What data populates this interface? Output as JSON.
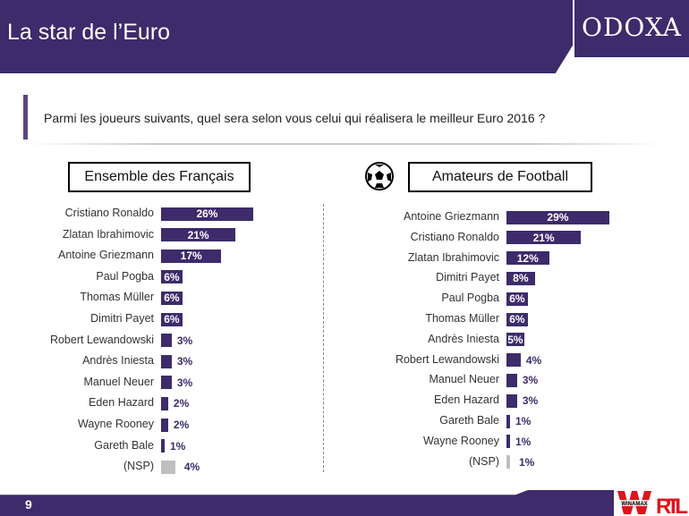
{
  "header": {
    "title": "La star de l’Euro",
    "logo": "ODOXA"
  },
  "question": "Parmi les joueurs suivants, quel sera selon vous celui qui réalisera le meilleur Euro 2016 ?",
  "footer": {
    "page": "9",
    "partner_logos": [
      "WINAMAX",
      "RTL"
    ]
  },
  "colors": {
    "bar": "#3d2b6b",
    "nsp": "#bfbfbf",
    "header": "#3d2b6b"
  },
  "chart_data": [
    {
      "type": "bar",
      "orientation": "horizontal",
      "title": "Ensemble des Français",
      "categories": [
        "Cristiano Ronaldo",
        "Zlatan Ibrahimovic",
        "Antoine Griezmann",
        "Paul Pogba",
        "Thomas Müller",
        "Dimitri Payet",
        "Robert Lewandowski",
        "Andrès Iniesta",
        "Manuel Neuer",
        "Eden Hazard",
        "Wayne Rooney",
        "Gareth Bale",
        "(NSP)"
      ],
      "values": [
        26,
        21,
        17,
        6,
        6,
        6,
        3,
        3,
        3,
        2,
        2,
        1,
        4
      ],
      "unit": "%"
    },
    {
      "type": "bar",
      "orientation": "horizontal",
      "title": "Amateurs de Football",
      "icon": "soccer-ball-icon",
      "categories": [
        "Antoine Griezmann",
        "Cristiano Ronaldo",
        "Zlatan Ibrahimovic",
        "Dimitri Payet",
        "Paul Pogba",
        "Thomas Müller",
        "Andrès Iniesta",
        "Robert Lewandowski",
        "Manuel Neuer",
        "Eden Hazard",
        "Gareth Bale",
        "Wayne Rooney",
        "(NSP)"
      ],
      "values": [
        29,
        21,
        12,
        8,
        6,
        6,
        5,
        4,
        3,
        3,
        1,
        1,
        1
      ],
      "unit": "%"
    }
  ]
}
